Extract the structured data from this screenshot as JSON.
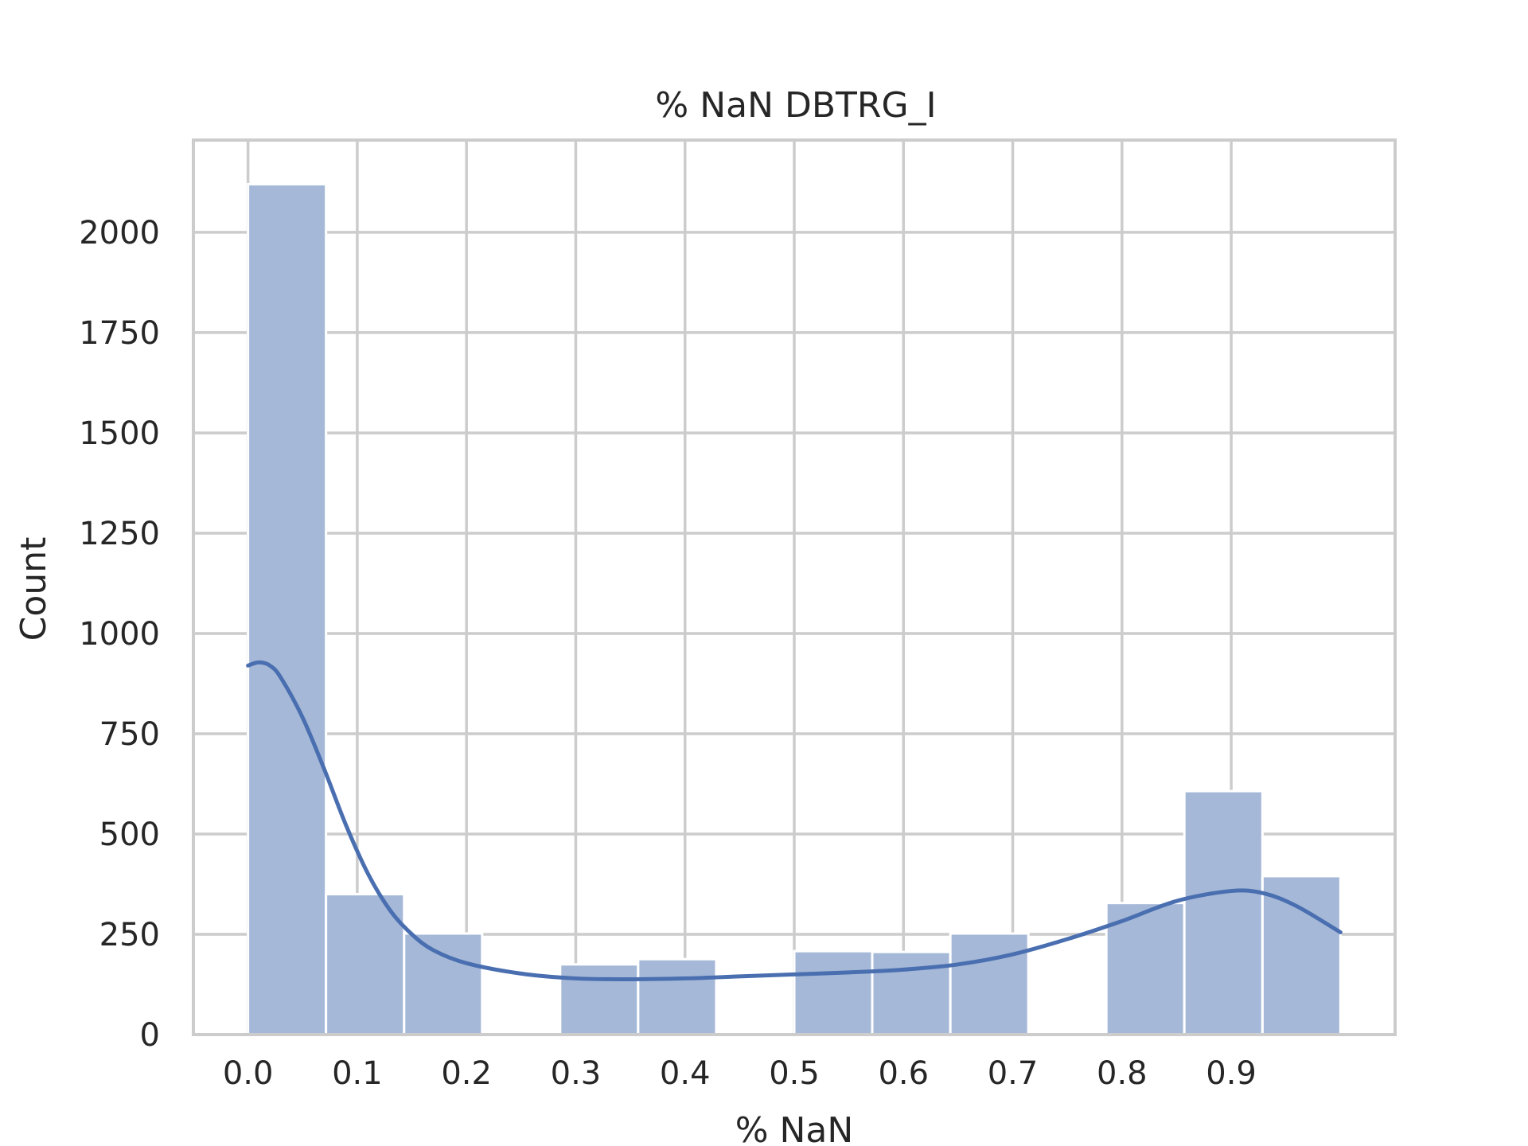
{
  "chart_data": {
    "type": "bar",
    "title": "% NaN DBTRG_I",
    "xlabel": "% NaN",
    "ylabel": "Count",
    "xlim": [
      -0.05,
      1.05
    ],
    "ylim": [
      0,
      2230
    ],
    "xticks": [
      "0.0",
      "0.1",
      "0.2",
      "0.3",
      "0.4",
      "0.5",
      "0.6",
      "0.7",
      "0.8",
      "0.9"
    ],
    "xtick_values": [
      0.0,
      0.1,
      0.2,
      0.3,
      0.4,
      0.5,
      0.6,
      0.7,
      0.8,
      0.9
    ],
    "yticks": [
      "0",
      "250",
      "500",
      "750",
      "1000",
      "1250",
      "1500",
      "1750",
      "2000"
    ],
    "ytick_values": [
      0,
      250,
      500,
      750,
      1000,
      1250,
      1500,
      1750,
      2000
    ],
    "grid": true,
    "bins": [
      {
        "x0": 0.0,
        "x1": 0.0714,
        "count": 2120
      },
      {
        "x0": 0.0714,
        "x1": 0.1429,
        "count": 350
      },
      {
        "x0": 0.1429,
        "x1": 0.2143,
        "count": 252
      },
      {
        "x0": 0.2143,
        "x1": 0.2857,
        "count": 0
      },
      {
        "x0": 0.2857,
        "x1": 0.3571,
        "count": 175
      },
      {
        "x0": 0.3571,
        "x1": 0.4286,
        "count": 188
      },
      {
        "x0": 0.4286,
        "x1": 0.5,
        "count": 0
      },
      {
        "x0": 0.5,
        "x1": 0.5714,
        "count": 208
      },
      {
        "x0": 0.5714,
        "x1": 0.6429,
        "count": 206
      },
      {
        "x0": 0.6429,
        "x1": 0.7143,
        "count": 252
      },
      {
        "x0": 0.7143,
        "x1": 0.7857,
        "count": 0
      },
      {
        "x0": 0.7857,
        "x1": 0.8571,
        "count": 328
      },
      {
        "x0": 0.8571,
        "x1": 0.9286,
        "count": 607
      },
      {
        "x0": 0.9286,
        "x1": 1.0,
        "count": 395
      }
    ],
    "kde": {
      "x": [
        0.0,
        0.01,
        0.02,
        0.03,
        0.05,
        0.07,
        0.09,
        0.11,
        0.13,
        0.15,
        0.17,
        0.2,
        0.25,
        0.3,
        0.35,
        0.4,
        0.45,
        0.5,
        0.55,
        0.6,
        0.65,
        0.7,
        0.75,
        0.8,
        0.85,
        0.9,
        0.93,
        0.96,
        1.0
      ],
      "y": [
        920,
        928,
        920,
        890,
        790,
        660,
        520,
        400,
        310,
        250,
        210,
        178,
        152,
        140,
        138,
        140,
        145,
        150,
        155,
        162,
        175,
        200,
        238,
        283,
        333,
        358,
        352,
        320,
        255
      ]
    }
  }
}
